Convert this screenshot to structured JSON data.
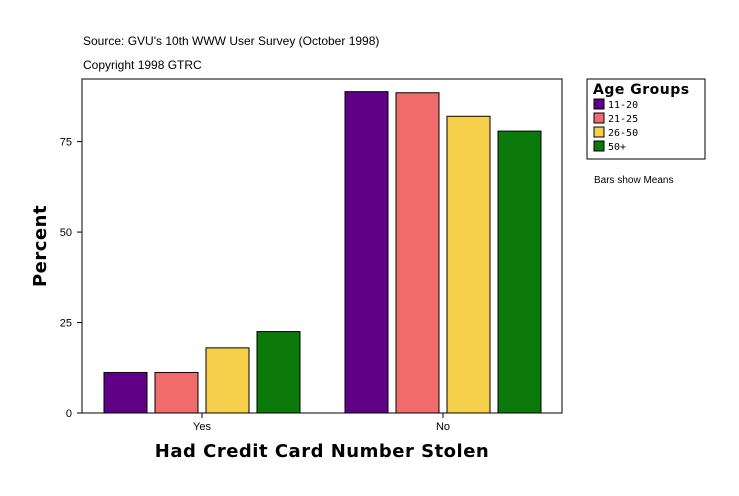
{
  "header": {
    "source": "Source: GVU's 10th WWW User Survey (October 1998)",
    "copyright": "Copyright 1998 GTRC"
  },
  "note": "Bars show Means",
  "legend": {
    "title": "Age Groups",
    "items": [
      {
        "label": "11-20",
        "color": "#5f0087"
      },
      {
        "label": "21-25",
        "color": "#f06c6c"
      },
      {
        "label": "26-50",
        "color": "#f6d04a"
      },
      {
        "label": "50+",
        "color": "#0b7a0b"
      }
    ],
    "position": "top-right-outside"
  },
  "chart_data": {
    "type": "bar",
    "xlabel": "Had Credit Card Number Stolen",
    "ylabel": "Percent",
    "categories": [
      "Yes",
      "No"
    ],
    "series": [
      {
        "name": "11-20",
        "color": "#5f0087",
        "values": [
          11.2,
          88.8
        ]
      },
      {
        "name": "21-25",
        "color": "#f06c6c",
        "values": [
          11.2,
          88.5
        ]
      },
      {
        "name": "26-50",
        "color": "#f6d04a",
        "values": [
          18.0,
          82.0
        ]
      },
      {
        "name": "50+",
        "color": "#0b7a0b",
        "values": [
          22.5,
          77.9
        ]
      }
    ],
    "yticks": [
      0,
      25,
      50,
      75
    ],
    "ylim": [
      0,
      92.3
    ],
    "grid": false
  }
}
